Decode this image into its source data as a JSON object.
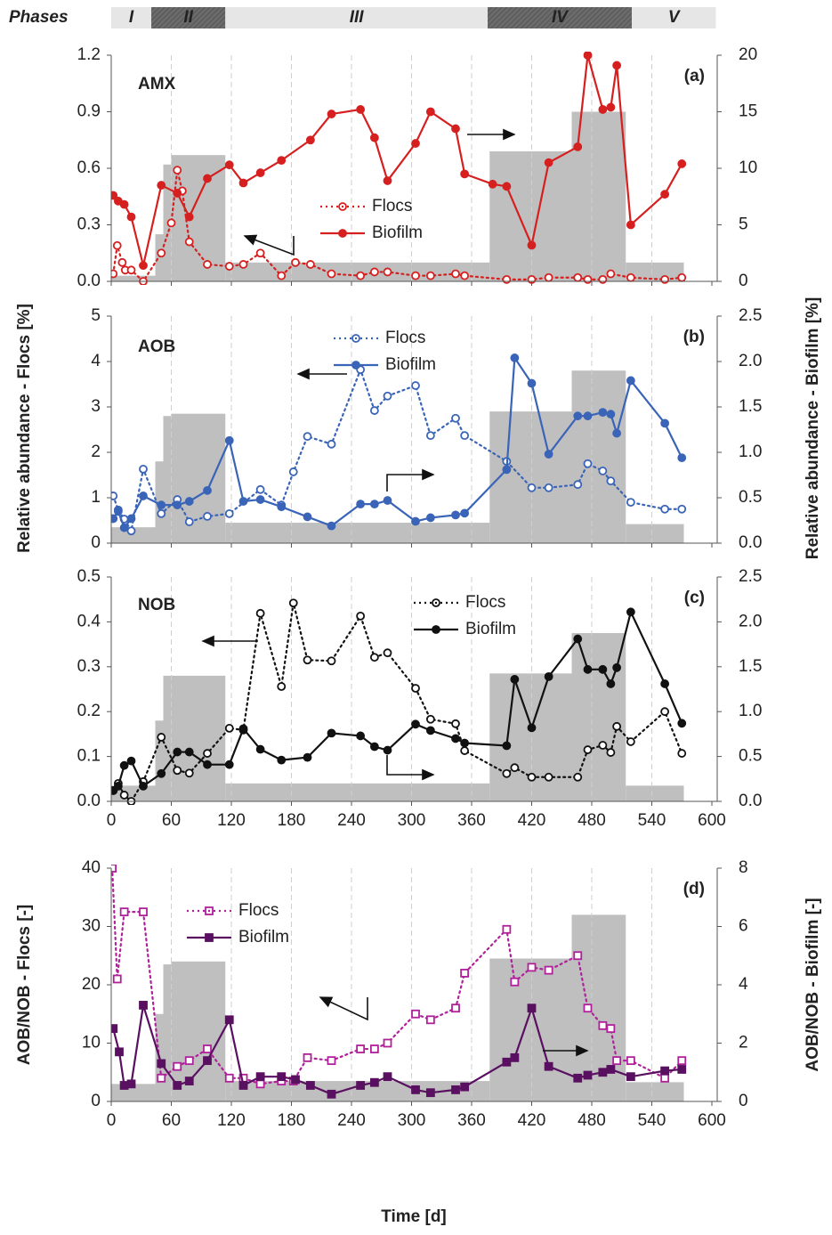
{
  "chart_data": [
    {
      "type": "phases",
      "title": "Phases",
      "xlim": [
        0,
        600
      ],
      "phases": [
        {
          "label": "I",
          "start": 0,
          "end": 40,
          "color": "#e6e6e6"
        },
        {
          "label": "II",
          "start": 40,
          "end": 114,
          "color": "#6b6b6b"
        },
        {
          "label": "III",
          "start": 114,
          "end": 376,
          "color": "#e6e6e6"
        },
        {
          "label": "IV",
          "start": 376,
          "end": 520,
          "color": "#6b6b6b"
        },
        {
          "label": "V",
          "start": 520,
          "end": 604,
          "color": "#e6e6e6"
        }
      ]
    },
    {
      "type": "line",
      "title": "AMX",
      "tag": "(a)",
      "xlim": [
        0,
        600
      ],
      "xticks": [
        0,
        60,
        120,
        180,
        240,
        300,
        360,
        420,
        480,
        540,
        600
      ],
      "show_xtick_labels": false,
      "grid": true,
      "ylim": [
        0,
        1.2
      ],
      "yticks": [
        {
          "value": 0,
          "label": "0.0"
        },
        0.3,
        0.6,
        0.9,
        1.2
      ],
      "y2lim": [
        0,
        20
      ],
      "y2ticks": [
        0,
        5,
        10,
        15,
        20
      ],
      "bars": {
        "color": "#bfbfbf",
        "bins": [
          0,
          44,
          52,
          60,
          114,
          378,
          460,
          514,
          572
        ],
        "values": [
          0.03,
          0.25,
          0.62,
          0.67,
          0.1,
          0.69,
          0.9,
          0.1
        ]
      },
      "series": [
        {
          "name": "Flocs",
          "color": "#d62020",
          "marker": "open-circle",
          "dash": true,
          "x": [
            2,
            6,
            11,
            14,
            20,
            32,
            50,
            60,
            66,
            71,
            78,
            96,
            118,
            132,
            149,
            170,
            184,
            199,
            220,
            249,
            263,
            276,
            304,
            319,
            344,
            353,
            395,
            420,
            437,
            466,
            476,
            491,
            499,
            519,
            553,
            570
          ],
          "values": [
            0.04,
            0.19,
            0.1,
            0.06,
            0.06,
            0.0,
            0.15,
            0.31,
            0.59,
            0.48,
            0.21,
            0.09,
            0.08,
            0.09,
            0.15,
            0.03,
            0.1,
            0.09,
            0.04,
            0.03,
            0.05,
            0.05,
            0.03,
            0.03,
            0.04,
            0.03,
            0.01,
            0.01,
            0.02,
            0.02,
            0.01,
            0.01,
            0.04,
            0.02,
            0.01,
            0.02
          ]
        },
        {
          "name": "Biofilm",
          "color": "#d62020",
          "marker": "circle",
          "dash": false,
          "axis": "y2",
          "x": [
            2,
            7,
            13,
            20,
            32,
            50,
            66,
            78,
            96,
            118,
            132,
            149,
            170,
            199,
            220,
            249,
            263,
            276,
            304,
            319,
            344,
            353,
            381,
            395,
            420,
            437,
            466,
            476,
            491,
            499,
            505,
            519,
            553,
            570
          ],
          "values": [
            7.6,
            7.1,
            6.8,
            5.7,
            1.4,
            8.5,
            7.8,
            5.7,
            9.1,
            10.3,
            8.7,
            9.6,
            10.7,
            12.5,
            14.8,
            15.2,
            12.7,
            8.9,
            12.2,
            15.0,
            13.5,
            9.5,
            8.6,
            8.4,
            3.2,
            10.5,
            11.9,
            20.0,
            15.2,
            15.4,
            19.1,
            5.0,
            7.7,
            10.4
          ]
        }
      ]
    },
    {
      "type": "line",
      "title": "AOB",
      "tag": "(b)",
      "xlim": [
        0,
        600
      ],
      "xticks": [
        0,
        60,
        120,
        180,
        240,
        300,
        360,
        420,
        480,
        540,
        600
      ],
      "show_xtick_labels": false,
      "grid": true,
      "ylim": [
        0,
        5
      ],
      "yticks": [
        0,
        1,
        2,
        3,
        4,
        5
      ],
      "y2lim": [
        0,
        2.5
      ],
      "y2ticks": [
        {
          "value": 0,
          "label": "0.0"
        },
        0.5,
        {
          "value": 1,
          "label": "1.0"
        },
        1.5,
        {
          "value": 2,
          "label": "2.0"
        },
        2.5
      ],
      "bars": {
        "color": "#bfbfbf",
        "bins": [
          0,
          44,
          52,
          60,
          114,
          378,
          460,
          514,
          572
        ],
        "values": [
          0.35,
          1.8,
          2.8,
          2.85,
          0.45,
          2.9,
          3.8,
          0.42
        ]
      },
      "series": [
        {
          "name": "Flocs",
          "color": "#3a64b8",
          "marker": "open-circle",
          "dash": true,
          "x": [
            2,
            7,
            13,
            20,
            32,
            50,
            66,
            78,
            96,
            118,
            149,
            170,
            182,
            196,
            220,
            249,
            263,
            276,
            304,
            319,
            344,
            353,
            395,
            420,
            437,
            466,
            476,
            491,
            499,
            519,
            553,
            570
          ],
          "values": [
            1.04,
            0.73,
            0.53,
            0.27,
            1.63,
            0.65,
            0.96,
            0.47,
            0.59,
            0.65,
            1.18,
            0.84,
            1.57,
            2.35,
            2.18,
            3.82,
            2.92,
            3.24,
            3.47,
            2.37,
            2.75,
            2.37,
            1.8,
            1.22,
            1.22,
            1.29,
            1.75,
            1.59,
            1.37,
            0.9,
            0.75,
            0.75
          ]
        },
        {
          "name": "Biofilm",
          "color": "#3a64b8",
          "marker": "circle",
          "dash": false,
          "axis": "y2",
          "x": [
            2,
            7,
            13,
            20,
            32,
            50,
            66,
            78,
            96,
            118,
            132,
            149,
            170,
            196,
            220,
            249,
            263,
            276,
            304,
            319,
            344,
            353,
            395,
            403,
            420,
            437,
            466,
            476,
            491,
            499,
            505,
            519,
            553,
            570
          ],
          "values": [
            0.27,
            0.35,
            0.17,
            0.27,
            0.52,
            0.42,
            0.42,
            0.46,
            0.58,
            1.13,
            0.46,
            0.48,
            0.4,
            0.29,
            0.19,
            0.43,
            0.43,
            0.47,
            0.24,
            0.28,
            0.31,
            0.33,
            0.81,
            2.04,
            1.76,
            0.98,
            1.4,
            1.4,
            1.44,
            1.42,
            1.21,
            1.79,
            1.32,
            0.94
          ]
        }
      ]
    },
    {
      "type": "line",
      "title": "NOB",
      "tag": "(c)",
      "xlim": [
        0,
        600
      ],
      "xticks": [
        0,
        60,
        120,
        180,
        240,
        300,
        360,
        420,
        480,
        540,
        600
      ],
      "show_xtick_labels": true,
      "grid": true,
      "ylim": [
        0,
        0.5
      ],
      "yticks": [
        {
          "value": 0,
          "label": "0.0"
        },
        0.1,
        0.2,
        0.3,
        0.4,
        0.5
      ],
      "y2lim": [
        0,
        2.5
      ],
      "y2ticks": [
        {
          "value": 0,
          "label": "0.0"
        },
        0.5,
        {
          "value": 1,
          "label": "1.0"
        },
        1.5,
        {
          "value": 2,
          "label": "2.0"
        },
        2.5
      ],
      "bars": {
        "color": "#bfbfbf",
        "bins": [
          0,
          44,
          52,
          60,
          114,
          378,
          460,
          514,
          572
        ],
        "values": [
          0.035,
          0.18,
          0.28,
          0.28,
          0.04,
          0.285,
          0.375,
          0.035
        ]
      },
      "series": [
        {
          "name": "Flocs",
          "color": "#111111",
          "marker": "open-circle",
          "dash": true,
          "x": [
            2,
            7,
            13,
            20,
            32,
            50,
            66,
            78,
            96,
            118,
            132,
            149,
            170,
            182,
            196,
            220,
            249,
            263,
            276,
            304,
            319,
            344,
            353,
            395,
            403,
            420,
            437,
            466,
            476,
            491,
            499,
            505,
            519,
            553,
            570
          ],
          "values": [
            0.024,
            0.04,
            0.014,
            0.0,
            0.044,
            0.143,
            0.069,
            0.063,
            0.107,
            0.163,
            0.159,
            0.419,
            0.256,
            0.442,
            0.315,
            0.313,
            0.413,
            0.321,
            0.331,
            0.252,
            0.183,
            0.173,
            0.113,
            0.062,
            0.075,
            0.054,
            0.054,
            0.054,
            0.115,
            0.125,
            0.109,
            0.167,
            0.133,
            0.2,
            0.107
          ]
        },
        {
          "name": "Biofilm",
          "color": "#111111",
          "marker": "circle",
          "dash": false,
          "axis": "y2",
          "x": [
            2,
            7,
            13,
            20,
            32,
            50,
            66,
            78,
            96,
            118,
            132,
            149,
            170,
            196,
            220,
            249,
            263,
            276,
            304,
            319,
            344,
            353,
            395,
            403,
            420,
            437,
            466,
            476,
            491,
            499,
            505,
            519,
            553,
            570
          ],
          "values": [
            0.12,
            0.17,
            0.4,
            0.45,
            0.17,
            0.31,
            0.55,
            0.55,
            0.41,
            0.41,
            0.81,
            0.58,
            0.46,
            0.49,
            0.76,
            0.73,
            0.61,
            0.57,
            0.86,
            0.79,
            0.7,
            0.65,
            0.62,
            1.36,
            0.82,
            1.39,
            1.81,
            1.47,
            1.47,
            1.31,
            1.49,
            2.11,
            1.31,
            0.87
          ]
        }
      ]
    },
    {
      "type": "line",
      "tag": "(d)",
      "xlim": [
        0,
        600
      ],
      "xticks": [
        0,
        60,
        120,
        180,
        240,
        300,
        360,
        420,
        480,
        540,
        600
      ],
      "show_xtick_labels": true,
      "grid": true,
      "ylabel": "AOB/NOB - Flocs [-]",
      "ylabel_color": "#b0209a",
      "y2label": "AOB/NOB - Biofilm [-]",
      "y2label_color": "#5a1060",
      "ylim": [
        0,
        40
      ],
      "yticks": [
        0,
        10,
        20,
        30,
        40
      ],
      "y2lim": [
        0,
        8
      ],
      "y2ticks": [
        0,
        2,
        4,
        6,
        8
      ],
      "bars": {
        "color": "#bfbfbf",
        "bins": [
          0,
          44,
          52,
          60,
          114,
          378,
          460,
          514,
          572
        ],
        "values": [
          3,
          15,
          23.5,
          24,
          3.5,
          24.5,
          32,
          3.3
        ]
      },
      "series": [
        {
          "name": "Flocs",
          "color": "#b0209a",
          "marker": "open-square",
          "dash": true,
          "x": [
            1,
            6,
            13,
            32,
            50,
            66,
            78,
            96,
            118,
            132,
            149,
            170,
            182,
            196,
            220,
            249,
            263,
            276,
            304,
            319,
            344,
            353,
            395,
            403,
            420,
            437,
            466,
            476,
            491,
            499,
            505,
            519,
            553,
            570
          ],
          "values": [
            40,
            21,
            32.5,
            32.5,
            4,
            6,
            7,
            9,
            4,
            4,
            3,
            3.5,
            3.5,
            7.5,
            7,
            9,
            9,
            10,
            15,
            14,
            16,
            22,
            29.5,
            20.5,
            23,
            22.5,
            25,
            16,
            13,
            12.5,
            7,
            7,
            4,
            7
          ]
        },
        {
          "name": "Biofilm",
          "color": "#5a1060",
          "marker": "square",
          "dash": false,
          "axis": "y2",
          "x": [
            2,
            8,
            13,
            20,
            32,
            50,
            66,
            78,
            96,
            118,
            132,
            149,
            170,
            184,
            199,
            220,
            249,
            263,
            276,
            304,
            319,
            344,
            353,
            395,
            403,
            420,
            437,
            466,
            476,
            491,
            499,
            519,
            553,
            570
          ],
          "values": [
            2.5,
            1.7,
            0.55,
            0.6,
            3.3,
            1.3,
            0.55,
            0.7,
            1.4,
            2.8,
            0.55,
            0.85,
            0.85,
            0.75,
            0.55,
            0.25,
            0.55,
            0.65,
            0.85,
            0.4,
            0.3,
            0.4,
            0.5,
            1.35,
            1.5,
            3.2,
            1.2,
            0.8,
            0.9,
            1.0,
            1.1,
            0.85,
            1.05,
            1.1
          ]
        }
      ]
    }
  ],
  "shared": {
    "ylabel": "Relative abundance - Flocs [%]",
    "y2label": "Relative abundance - Biofilm [%]",
    "xlabel": "Time [d]"
  }
}
